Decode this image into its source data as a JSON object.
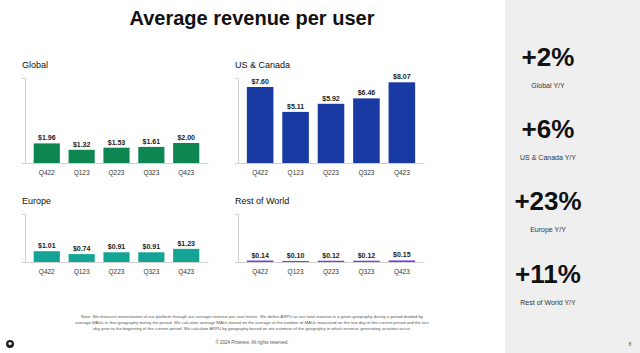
{
  "title": "Average revenue per user",
  "chart_data": [
    {
      "type": "bar",
      "title": "Global",
      "categories": [
        "Q422",
        "Q123",
        "Q223",
        "Q323",
        "Q423"
      ],
      "values": [
        1.96,
        1.32,
        1.53,
        1.61,
        2.0
      ],
      "value_labels": [
        "$1.96",
        "$1.32",
        "$1.53",
        "$1.61",
        "$2.00"
      ],
      "color": "#0d8651",
      "ylim": [
        0,
        8.5
      ],
      "data_labels": true,
      "tick_labels": "x"
    },
    {
      "type": "bar",
      "title": "US & Canada",
      "categories": [
        "Q422",
        "Q123",
        "Q223",
        "Q323",
        "Q423"
      ],
      "values": [
        7.6,
        5.11,
        5.92,
        6.46,
        8.07
      ],
      "value_labels": [
        "$7.60",
        "$5.11",
        "$5.92",
        "$6.46",
        "$8.07"
      ],
      "color": "#1a3aa3",
      "ylim": [
        0,
        8.5
      ],
      "data_labels": true,
      "tick_labels": "x"
    },
    {
      "type": "bar",
      "title": "Europe",
      "categories": [
        "Q422",
        "Q123",
        "Q223",
        "Q323",
        "Q423"
      ],
      "values": [
        1.01,
        0.74,
        0.91,
        0.91,
        1.23
      ],
      "value_labels": [
        "$1.01",
        "$0.74",
        "$0.91",
        "$0.91",
        "$1.23"
      ],
      "color": "#13a496",
      "ylim": [
        0,
        4.5
      ],
      "data_labels": true,
      "tick_labels": "x"
    },
    {
      "type": "bar",
      "title": "Rest of World",
      "categories": [
        "Q422",
        "Q123",
        "Q223",
        "Q323",
        "Q423"
      ],
      "values": [
        0.14,
        0.1,
        0.12,
        0.12,
        0.15
      ],
      "value_labels": [
        "$0.14",
        "$0.10",
        "$0.12",
        "$0.12",
        "$0.15"
      ],
      "color": "#7a3fe0",
      "ylim": [
        0,
        4.5
      ],
      "data_labels": true,
      "tick_labels": "x"
    }
  ],
  "highlights": [
    {
      "value": "+2%",
      "caption": "Global Y/Y"
    },
    {
      "value": "+6%",
      "caption": "US & Canada Y/Y"
    },
    {
      "value": "+23%",
      "caption": "Europe Y/Y"
    },
    {
      "value": "+11%",
      "caption": "Rest of World Y/Y"
    }
  ],
  "note": [
    "Note: We measure monetization of our platform through our average revenue per user metric. We define ARPU as our total revenue in a given geography during a period divided by",
    "average MAUs in that geography during the period. We calculate average MAUs based on the average of the number of MAUs measured on the last day of the current period and the last",
    "day prior to the beginning of the current period. We calculate ARPU by geography based on our estimate of the geography in which revenue generating activities occur."
  ],
  "copyright": "© 2024 Pinterest. All rights reserved.",
  "page_number": "8"
}
